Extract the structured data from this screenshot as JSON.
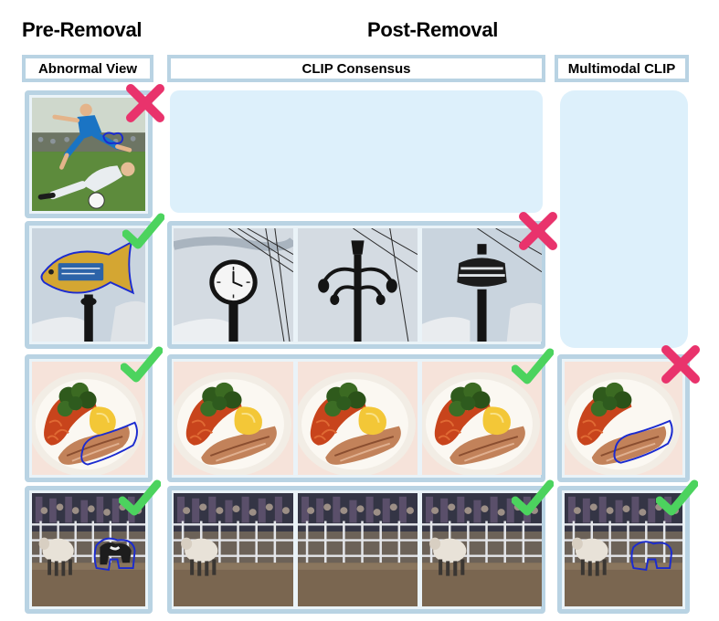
{
  "headers": {
    "pre_removal": "Pre-Removal",
    "post_removal": "Post-Removal"
  },
  "columns": {
    "abnormal_view": "Abnormal View",
    "clip_consensus": "CLIP Consensus",
    "multimodal_clip": "Multimodal CLIP"
  },
  "colors": {
    "frame": "#b9d3e3",
    "empty_cell": "#ddf0fb",
    "check": "#4cd35e",
    "cross": "#e9336c",
    "mask_outline": "#1b2bd0"
  },
  "rows": [
    {
      "scene": "soccer-players",
      "abnormal_mark": "cross",
      "clip_consensus": [],
      "multimodal_clip": "empty"
    },
    {
      "scene": "fish-sign-on-lamppost",
      "abnormal_mark": "check",
      "clip_consensus": [
        "clock-on-post",
        "ornate-lamp-post",
        "lamp-post-artifact"
      ],
      "clip_consensus_mark": "cross",
      "multimodal_clip": "empty"
    },
    {
      "scene": "pasta-salmon-plate",
      "abnormal_mark": "check",
      "clip_consensus": [
        "plate-with-lemon",
        "plate-with-lemon",
        "plate-with-lemon"
      ],
      "clip_consensus_mark": "check",
      "multimodal_clip": "plate-with-mask",
      "multimodal_mark": "cross"
    },
    {
      "scene": "sheep-and-dog-in-pen",
      "abnormal_mark": "check",
      "clip_consensus": [
        "sheep-only",
        "empty-pen",
        "sheep-only"
      ],
      "clip_consensus_mark": "check",
      "multimodal_clip": "sheep-with-mask-outline",
      "multimodal_mark": "check"
    }
  ]
}
